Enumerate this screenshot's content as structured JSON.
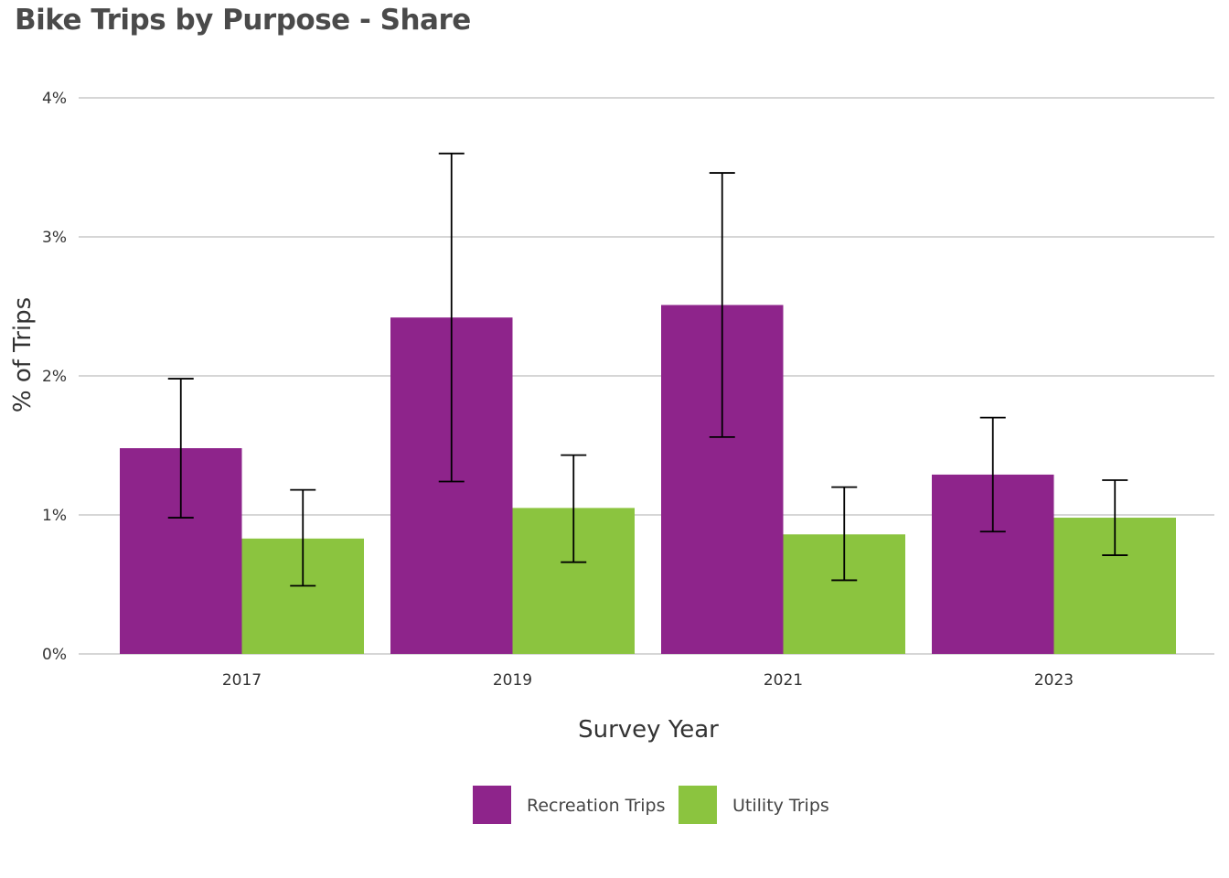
{
  "chart_data": {
    "type": "bar",
    "title": "Bike Trips by Purpose - Share",
    "xlabel": "Survey Year",
    "ylabel": "% of Trips",
    "categories": [
      "2017",
      "2019",
      "2021",
      "2023"
    ],
    "ylim": [
      0,
      4
    ],
    "yticks": [
      0,
      1,
      2,
      3,
      4
    ],
    "ytick_labels": [
      "0%",
      "1%",
      "2%",
      "3%",
      "4%"
    ],
    "grid": true,
    "legend_position": "bottom-center",
    "series": [
      {
        "name": "Recreation Trips",
        "color": "#8e248b",
        "values": [
          1.48,
          2.42,
          2.51,
          1.29
        ],
        "error_low": [
          0.98,
          1.24,
          1.56,
          0.88
        ],
        "error_high": [
          1.98,
          3.6,
          3.46,
          1.7
        ]
      },
      {
        "name": "Utility Trips",
        "color": "#8bc43f",
        "values": [
          0.83,
          1.05,
          0.86,
          0.98
        ],
        "error_low": [
          0.49,
          0.66,
          0.53,
          0.71
        ],
        "error_high": [
          1.18,
          1.43,
          1.2,
          1.25
        ]
      }
    ]
  }
}
